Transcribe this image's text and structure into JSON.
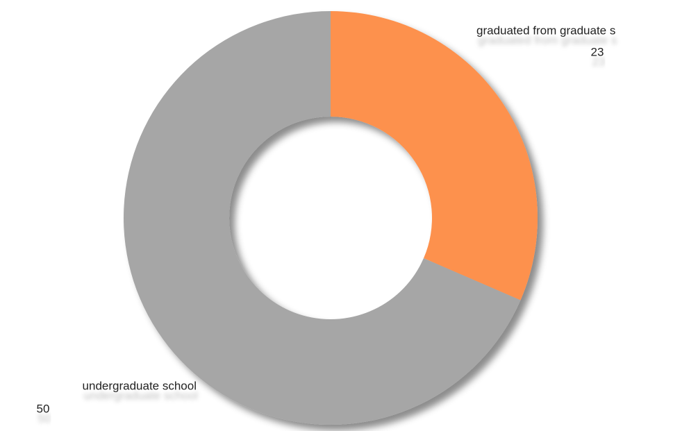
{
  "chart_data": {
    "type": "donut",
    "categories": [
      "graduated from graduate s",
      "undergraduate school"
    ],
    "values": [
      23,
      50
    ],
    "colors": [
      "#fd914d",
      "#a6a6a6"
    ]
  }
}
